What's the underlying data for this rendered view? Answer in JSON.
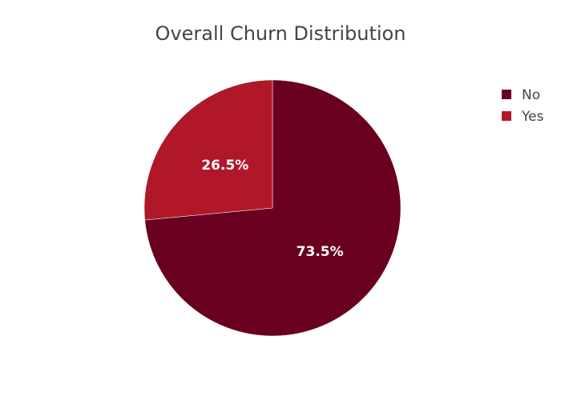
{
  "chart_data": {
    "type": "pie",
    "title": "Overall Churn Distribution",
    "legend_position": "top-right",
    "labels": [
      "No",
      "Yes"
    ],
    "values": [
      73.5,
      26.5
    ],
    "value_labels": [
      "73.5%",
      "26.5%"
    ],
    "colors": [
      "#6a0020",
      "#b0182a"
    ]
  }
}
